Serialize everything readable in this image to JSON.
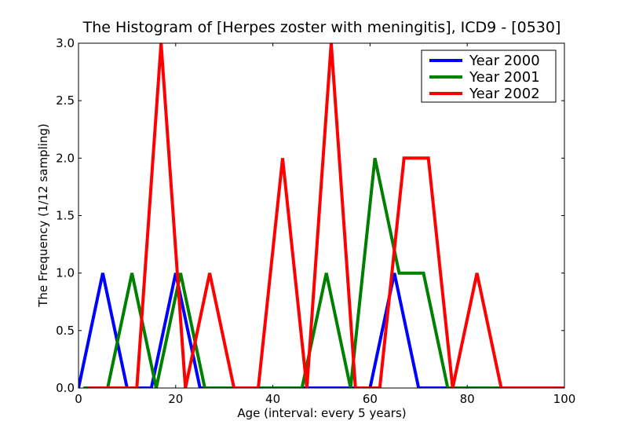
{
  "chart_data": {
    "type": "line",
    "title": "The Histogram of [Herpes zoster with meningitis], ICD9 - [0530]",
    "xlabel": "Age (interval: every 5 years)",
    "ylabel": "The Frequency (1/12 sampling)",
    "xlim": [
      0,
      100
    ],
    "ylim": [
      0,
      3.0
    ],
    "xticks": [
      0,
      20,
      40,
      60,
      80,
      100
    ],
    "xtick_labels": [
      "0",
      "20",
      "40",
      "60",
      "80",
      "100"
    ],
    "yticks": [
      0,
      0.5,
      1.0,
      1.5,
      2.0,
      2.5,
      3.0
    ],
    "ytick_labels": [
      "0.0",
      "0.5",
      "1.0",
      "1.5",
      "2.0",
      "2.5",
      "3.0"
    ],
    "grid": false,
    "legend_position": "top-right",
    "series": [
      {
        "name": "Year 2000",
        "color": "#0000ff",
        "x": [
          0,
          5,
          10,
          15,
          20,
          25,
          30,
          35,
          40,
          45,
          50,
          55,
          60,
          65,
          70,
          75,
          80,
          85,
          90,
          95,
          100
        ],
        "y": [
          0,
          1,
          0,
          0,
          1,
          0,
          0,
          0,
          0,
          0,
          0,
          0,
          0,
          1,
          0,
          0,
          0,
          0,
          0,
          0,
          0
        ]
      },
      {
        "name": "Year 2001",
        "color": "#008000",
        "x": [
          1,
          6,
          11,
          16,
          21,
          26,
          31,
          36,
          41,
          46,
          51,
          56,
          61,
          66,
          71,
          76,
          81,
          86,
          91,
          96,
          101
        ],
        "y": [
          0,
          0,
          1,
          0,
          1,
          0,
          0,
          0,
          0,
          0,
          1,
          0,
          2,
          1,
          1,
          0,
          0,
          0,
          0,
          0,
          0
        ]
      },
      {
        "name": "Year 2002",
        "color": "#ff0000",
        "x": [
          2,
          7,
          12,
          17,
          22,
          27,
          32,
          37,
          42,
          47,
          52,
          57,
          62,
          67,
          72,
          77,
          82,
          87,
          92,
          97,
          102
        ],
        "y": [
          0,
          0,
          0,
          3,
          0,
          1,
          0,
          0,
          2,
          0,
          3,
          0,
          0,
          2,
          2,
          0,
          1,
          0,
          0,
          0,
          0
        ]
      }
    ]
  }
}
